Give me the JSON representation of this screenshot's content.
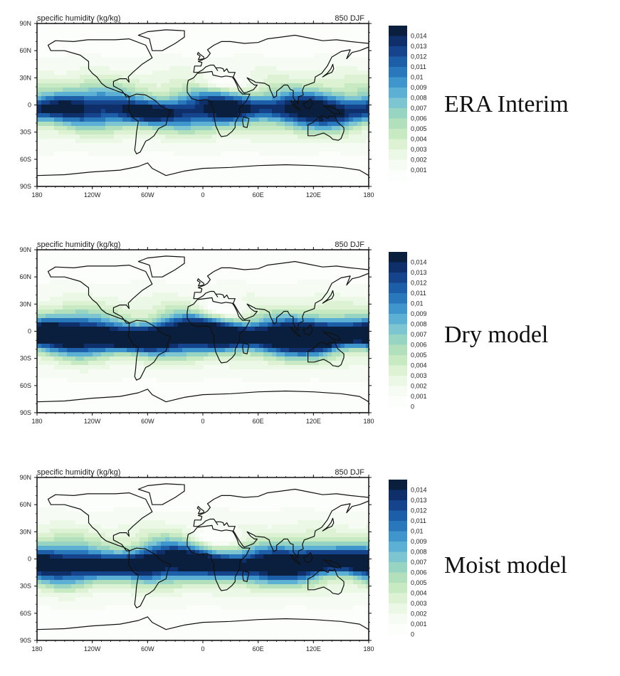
{
  "panels": [
    {
      "title": "specific humidity (kg/kg)",
      "level": "850 DJF",
      "label": "ERA Interim",
      "colorbar_levels": [
        "0,014",
        "0,013",
        "0,012",
        "0,011",
        "0,01",
        "0,009",
        "0,008",
        "0,007",
        "0,006",
        "0,005",
        "0,004",
        "0,003",
        "0,002",
        "0,001"
      ],
      "moisture_strength": 0.7
    },
    {
      "title": "specific humidity (kg/kg)",
      "level": "850 DJF",
      "label": "Dry model",
      "colorbar_levels": [
        "0,014",
        "0,013",
        "0,012",
        "0,011",
        "0,01",
        "0,009",
        "0,008",
        "0,007",
        "0,006",
        "0,005",
        "0,004",
        "0,003",
        "0,002",
        "0,001",
        "0"
      ],
      "moisture_strength": 1.0
    },
    {
      "title": "specific humidity (kg/kg)",
      "level": "850 DJF",
      "label": "Moist model",
      "colorbar_levels": [
        "0,014",
        "0,013",
        "0,012",
        "0,011",
        "0,01",
        "0,009",
        "0,008",
        "0,007",
        "0,006",
        "0,005",
        "0,004",
        "0,003",
        "0,002",
        "0,001",
        "0"
      ],
      "moisture_strength": 0.85
    }
  ],
  "lat_ticks": [
    "90N",
    "60N",
    "30N",
    "0",
    "30S",
    "60S",
    "90S"
  ],
  "lon_ticks": [
    "180",
    "120W",
    "60W",
    "0",
    "60E",
    "120E",
    "180"
  ],
  "colors": {
    "palette": [
      "#0a1f3d",
      "#0f2f6b",
      "#16448c",
      "#1d5ea8",
      "#2a78bc",
      "#3f96cc",
      "#5cb0d4",
      "#7dc5d0",
      "#98d4c2",
      "#b2e0bc",
      "#c8eac2",
      "#dcf2d3",
      "#ecf8e6",
      "#f6fcf3",
      "#fbfefa"
    ]
  }
}
